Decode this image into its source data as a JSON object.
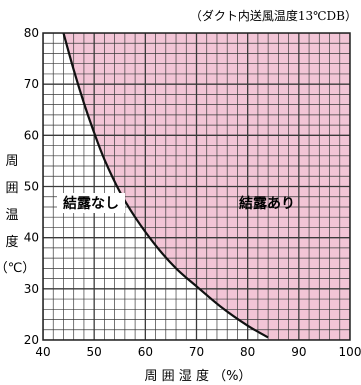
{
  "chart_data": {
    "type": "area",
    "note": "（ダクト内送風温度13℃DB）",
    "xlabel": "周 囲 湿 度 （%）",
    "ylabel": [
      "周",
      "囲",
      "温",
      "度",
      "（℃）"
    ],
    "xlim": [
      40,
      100
    ],
    "ylim": [
      20,
      80
    ],
    "x_ticks": [
      "40",
      "50",
      "60",
      "70",
      "80",
      "90",
      "100"
    ],
    "y_ticks": [
      "20",
      "30",
      "40",
      "50",
      "60",
      "70",
      "80"
    ],
    "grid": true,
    "regions": {
      "no_condensation": "結露なし",
      "condensation": "結露あり"
    },
    "boundary": {
      "x": [
        44,
        46,
        48,
        50,
        52,
        55,
        58,
        62,
        66,
        70,
        75,
        80,
        84
      ],
      "y": [
        80,
        72.8,
        66.3,
        60.5,
        55.3,
        49,
        44,
        38.5,
        34,
        30.5,
        26.3,
        22.8,
        20.5
      ]
    },
    "colors": {
      "condensation_fill": "#f2c5d6",
      "grid": "#3a3a3a",
      "curve": "#111111"
    }
  }
}
